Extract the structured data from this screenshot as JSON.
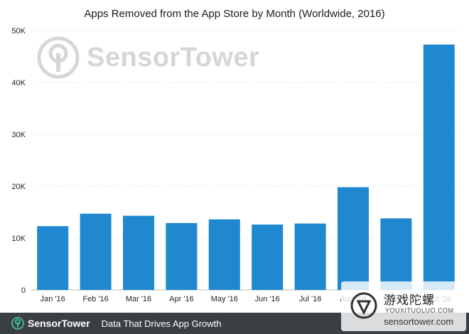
{
  "chart_data": {
    "type": "bar",
    "title": "Apps Removed from the App Store by Month (Worldwide, 2016)",
    "xlabel": "",
    "ylabel": "",
    "categories": [
      "Jan '16",
      "Feb '16",
      "Mar '16",
      "Apr '16",
      "May '16",
      "Jun '16",
      "Jul '16",
      "Aug '16",
      "Sep '16",
      "Oct '16"
    ],
    "values": [
      12300,
      14700,
      14300,
      12900,
      13600,
      12600,
      12800,
      19800,
      13800,
      47300
    ],
    "ylim": [
      0,
      50000
    ],
    "yticks": [
      {
        "value": 0,
        "label": "0"
      },
      {
        "value": 10000,
        "label": "10K"
      },
      {
        "value": 20000,
        "label": "20K"
      },
      {
        "value": 30000,
        "label": "30K"
      },
      {
        "value": 40000,
        "label": "40K"
      },
      {
        "value": 50000,
        "label": "50K"
      }
    ],
    "grid": true,
    "bar_color": "#1f88cf"
  },
  "watermark": {
    "brand": "SensorTower",
    "icon": "sensor-tower-logo-icon"
  },
  "footer": {
    "brand": "SensorTower",
    "tagline": "Data That Drives App Growth",
    "background": "#3a3f44"
  },
  "overlay_badge": {
    "title": "游戏陀螺",
    "subtitle": "YOUXITUOLUO.COM",
    "domain": "sensortower.com"
  }
}
